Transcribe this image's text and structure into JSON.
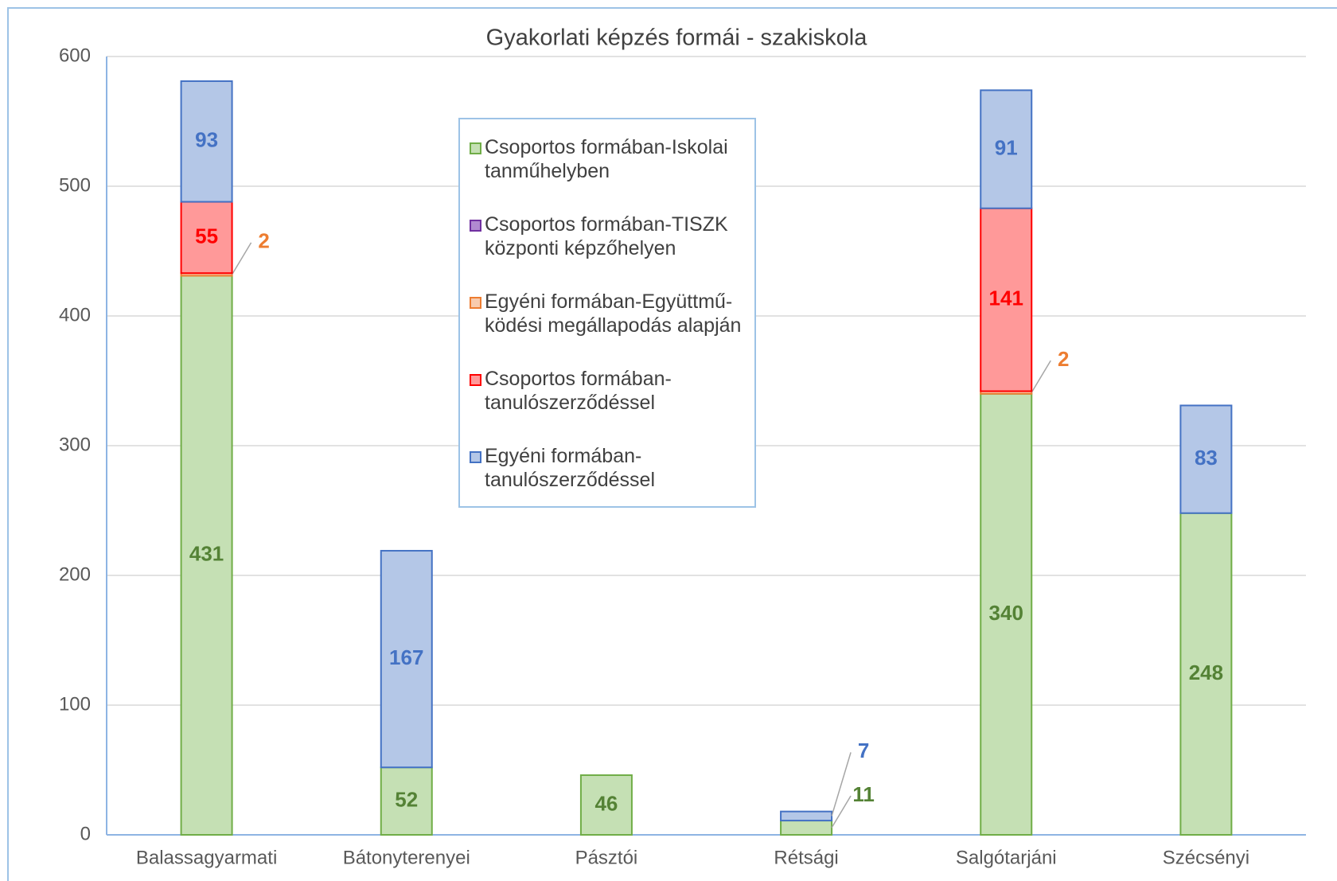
{
  "chart_data": {
    "type": "stacked-bar",
    "title": "Gyakorlati képzés formái - szakiskola",
    "categories": [
      "Balassagyarmati",
      "Bátonyterenyei",
      "Pásztói",
      "Rétsági",
      "Salgótarjáni",
      "Szécsényi"
    ],
    "series": [
      {
        "name": "Csoportos formában-Iskolai tanműhelyben",
        "color": "#c5e0b4",
        "edge_color": "#70ad47",
        "label_color": "#548235",
        "values": [
          431,
          52,
          46,
          11,
          340,
          248
        ]
      },
      {
        "name": "Csoportos formában-TISZK központi képzőhelyen",
        "color": "#b18ad0",
        "edge_color": "#7030a0",
        "label_color": "#7030a0",
        "values": [
          null,
          null,
          null,
          null,
          null,
          null
        ]
      },
      {
        "name": "Egyéni formában-Együttmű-ködési megállapodás alapján",
        "color": "#f8cbad",
        "edge_color": "#ed7d31",
        "label_color": "#ed7d31",
        "values": [
          2,
          null,
          null,
          null,
          2,
          null
        ]
      },
      {
        "name": "Csoportos formában-tanulószerződéssel",
        "color": "#ff9999",
        "edge_color": "#ff0000",
        "label_color": "#ff0000",
        "values": [
          55,
          null,
          null,
          null,
          141,
          null
        ]
      },
      {
        "name": "Egyéni formában-tanulószerződéssel",
        "color": "#b4c7e7",
        "edge_color": "#4472c4",
        "label_color": "#4472c4",
        "values": [
          93,
          167,
          null,
          7,
          91,
          83
        ]
      }
    ],
    "ylim": [
      0,
      600
    ],
    "yticks": [
      0,
      100,
      200,
      300,
      400,
      500,
      600
    ],
    "grid": true,
    "legend": "center"
  }
}
